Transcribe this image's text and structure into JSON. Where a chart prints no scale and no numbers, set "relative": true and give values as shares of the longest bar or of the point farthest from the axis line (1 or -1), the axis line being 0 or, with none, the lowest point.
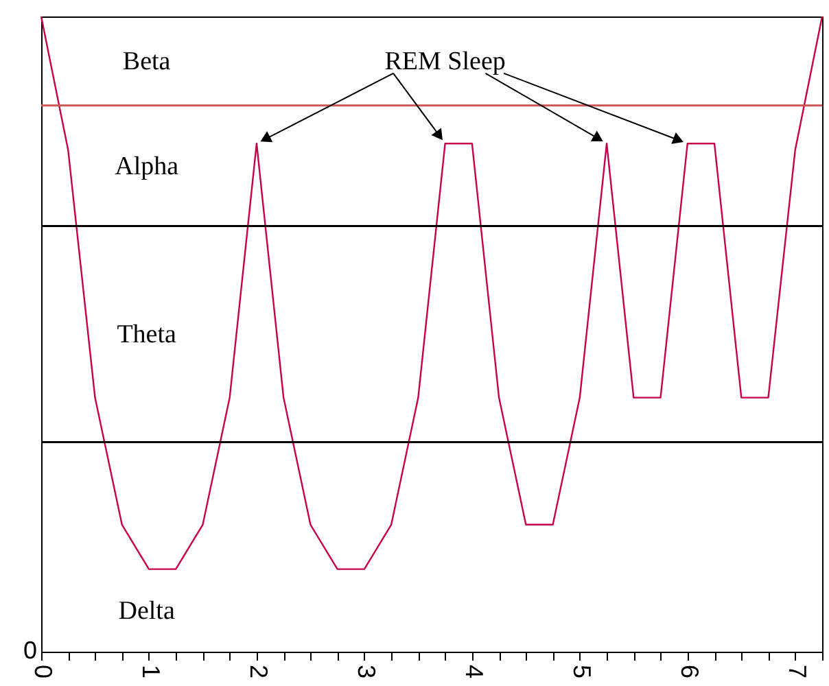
{
  "chart_data": {
    "type": "line",
    "relative": true,
    "x": [
      0,
      0.25,
      0.5,
      0.75,
      1,
      1.25,
      1.5,
      1.75,
      2,
      2.25,
      2.5,
      2.75,
      3,
      3.25,
      3.5,
      3.75,
      4,
      4.25,
      4.5,
      4.75,
      5,
      5.25,
      5.5,
      5.75,
      6,
      6.25,
      6.5,
      6.75,
      7,
      7.25
    ],
    "series": [
      {
        "color": "#c8004b",
        "values": [
          1.0,
          0.79,
          0.4,
          0.2,
          0.13,
          0.13,
          0.2,
          0.4,
          0.8,
          0.4,
          0.2,
          0.13,
          0.13,
          0.2,
          0.4,
          0.8,
          0.8,
          0.4,
          0.2,
          0.2,
          0.4,
          0.8,
          0.4,
          0.4,
          0.8,
          0.8,
          0.4,
          0.4,
          0.79,
          1.0
        ]
      }
    ],
    "xlim": [
      0,
      7.25
    ],
    "xticks": [
      0,
      {
        "value": 0.25,
        "label": null
      },
      {
        "value": 0.5,
        "label": null
      },
      {
        "value": 0.75,
        "label": null
      },
      1,
      {
        "value": 1.25,
        "label": null
      },
      {
        "value": 1.5,
        "label": null
      },
      {
        "value": 1.75,
        "label": null
      },
      2,
      {
        "value": 2.25,
        "label": null
      },
      {
        "value": 2.5,
        "label": null
      },
      {
        "value": 2.75,
        "label": null
      },
      3,
      {
        "value": 3.25,
        "label": null
      },
      {
        "value": 3.5,
        "label": null
      },
      {
        "value": 3.75,
        "label": null
      },
      4,
      {
        "value": 4.25,
        "label": null
      },
      {
        "value": 4.5,
        "label": null
      },
      {
        "value": 4.75,
        "label": null
      },
      5,
      {
        "value": 5.25,
        "label": null
      },
      {
        "value": 5.5,
        "label": null
      },
      {
        "value": 5.75,
        "label": null
      },
      6,
      {
        "value": 6.25,
        "label": null
      },
      {
        "value": 6.5,
        "label": null
      },
      {
        "value": 6.75,
        "label": null
      },
      7,
      {
        "value": 7.25,
        "label": null
      }
    ],
    "ref_lines": [
      {
        "axis": "y",
        "value": 0.86,
        "color": "#cc5555"
      },
      {
        "axis": "y",
        "value": 0.67,
        "color": "#000000"
      },
      {
        "axis": "y",
        "value": 0.33,
        "color": "#000000"
      }
    ],
    "annotations": [
      "Beta",
      {
        "text": "REM Sleep",
        "x": 3.75,
        "y": 0.8
      },
      "Alpha",
      "Theta",
      "Delta",
      "0"
    ],
    "grid": false,
    "marker": "none",
    "line_style": "solid"
  }
}
